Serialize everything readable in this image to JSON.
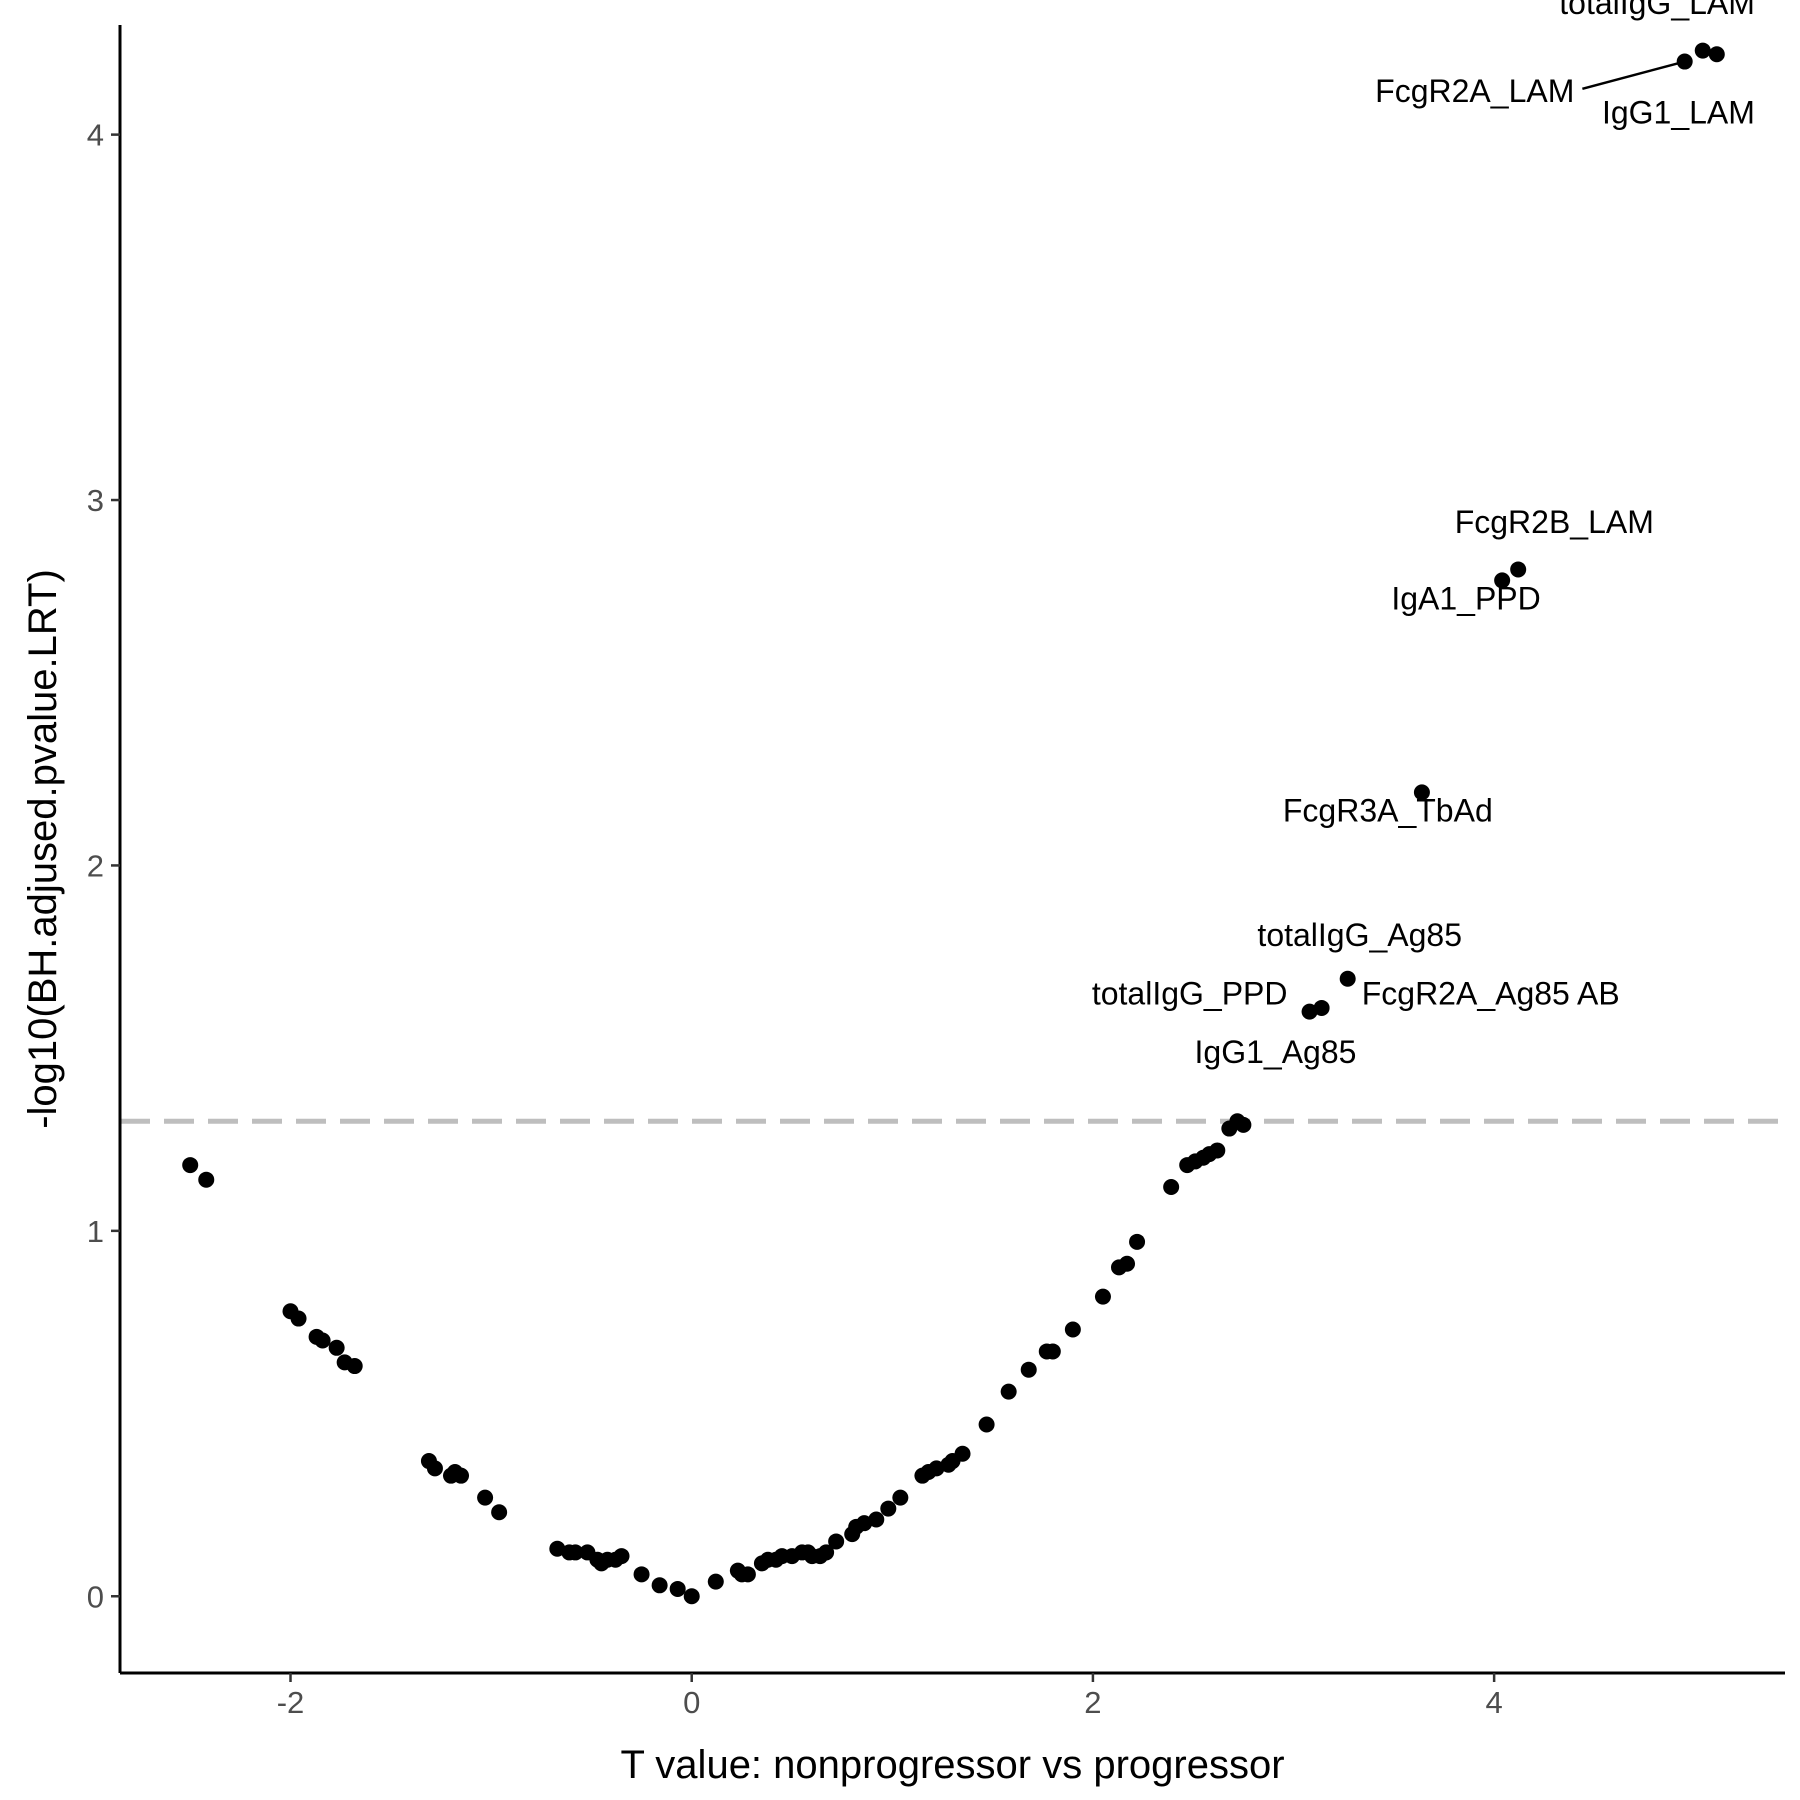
{
  "chart_data": {
    "type": "scatter",
    "xlabel": "T value: nonprogressor vs progressor",
    "ylabel": "-log10(BH.adjused.pvalue.LRT)",
    "xlim": [
      -2.85,
      5.45
    ],
    "ylim": [
      -0.21,
      4.3
    ],
    "xticks": [
      -2,
      0,
      2,
      4
    ],
    "xtick_labels": [
      "-2",
      "0",
      "2",
      "4"
    ],
    "yticks": [
      0,
      1,
      2,
      3,
      4
    ],
    "ytick_labels": [
      "0",
      "1",
      "2",
      "3",
      "4"
    ],
    "grid": false,
    "legend": "none",
    "threshold": {
      "y": 1.3,
      "style": "dashed",
      "color": "#bebebe"
    },
    "point_color": "#000000",
    "points": [
      {
        "x": -2.5,
        "y": 1.18
      },
      {
        "x": -2.42,
        "y": 1.14
      },
      {
        "x": -2.0,
        "y": 0.78
      },
      {
        "x": -1.96,
        "y": 0.76
      },
      {
        "x": -1.87,
        "y": 0.71
      },
      {
        "x": -1.84,
        "y": 0.7
      },
      {
        "x": -1.77,
        "y": 0.68
      },
      {
        "x": -1.73,
        "y": 0.64
      },
      {
        "x": -1.68,
        "y": 0.63
      },
      {
        "x": -1.31,
        "y": 0.37
      },
      {
        "x": -1.28,
        "y": 0.35
      },
      {
        "x": -1.2,
        "y": 0.33
      },
      {
        "x": -1.18,
        "y": 0.34
      },
      {
        "x": -1.15,
        "y": 0.33
      },
      {
        "x": -1.03,
        "y": 0.27
      },
      {
        "x": -0.96,
        "y": 0.23
      },
      {
        "x": -0.67,
        "y": 0.13
      },
      {
        "x": -0.61,
        "y": 0.12
      },
      {
        "x": -0.58,
        "y": 0.12
      },
      {
        "x": -0.52,
        "y": 0.12
      },
      {
        "x": -0.47,
        "y": 0.1
      },
      {
        "x": -0.45,
        "y": 0.09
      },
      {
        "x": -0.42,
        "y": 0.1
      },
      {
        "x": -0.38,
        "y": 0.1
      },
      {
        "x": -0.35,
        "y": 0.11
      },
      {
        "x": -0.25,
        "y": 0.06
      },
      {
        "x": -0.16,
        "y": 0.03
      },
      {
        "x": -0.07,
        "y": 0.02
      },
      {
        "x": 0.0,
        "y": 0.0
      },
      {
        "x": 0.12,
        "y": 0.04
      },
      {
        "x": 0.23,
        "y": 0.07
      },
      {
        "x": 0.25,
        "y": 0.06
      },
      {
        "x": 0.28,
        "y": 0.06
      },
      {
        "x": 0.35,
        "y": 0.09
      },
      {
        "x": 0.38,
        "y": 0.1
      },
      {
        "x": 0.42,
        "y": 0.1
      },
      {
        "x": 0.45,
        "y": 0.11
      },
      {
        "x": 0.5,
        "y": 0.11
      },
      {
        "x": 0.55,
        "y": 0.12
      },
      {
        "x": 0.58,
        "y": 0.12
      },
      {
        "x": 0.6,
        "y": 0.11
      },
      {
        "x": 0.64,
        "y": 0.11
      },
      {
        "x": 0.67,
        "y": 0.12
      },
      {
        "x": 0.72,
        "y": 0.15
      },
      {
        "x": 0.8,
        "y": 0.17
      },
      {
        "x": 0.82,
        "y": 0.19
      },
      {
        "x": 0.86,
        "y": 0.2
      },
      {
        "x": 0.92,
        "y": 0.21
      },
      {
        "x": 0.98,
        "y": 0.24
      },
      {
        "x": 1.04,
        "y": 0.27
      },
      {
        "x": 1.15,
        "y": 0.33
      },
      {
        "x": 1.18,
        "y": 0.34
      },
      {
        "x": 1.22,
        "y": 0.35
      },
      {
        "x": 1.28,
        "y": 0.36
      },
      {
        "x": 1.3,
        "y": 0.37
      },
      {
        "x": 1.35,
        "y": 0.39
      },
      {
        "x": 1.47,
        "y": 0.47
      },
      {
        "x": 1.58,
        "y": 0.56
      },
      {
        "x": 1.68,
        "y": 0.62
      },
      {
        "x": 1.77,
        "y": 0.67
      },
      {
        "x": 1.8,
        "y": 0.67
      },
      {
        "x": 1.9,
        "y": 0.73
      },
      {
        "x": 2.05,
        "y": 0.82
      },
      {
        "x": 2.13,
        "y": 0.9
      },
      {
        "x": 2.17,
        "y": 0.91
      },
      {
        "x": 2.22,
        "y": 0.97
      },
      {
        "x": 2.39,
        "y": 1.12
      },
      {
        "x": 2.47,
        "y": 1.18
      },
      {
        "x": 2.51,
        "y": 1.19
      },
      {
        "x": 2.55,
        "y": 1.2
      },
      {
        "x": 2.58,
        "y": 1.21
      },
      {
        "x": 2.62,
        "y": 1.22
      },
      {
        "x": 2.68,
        "y": 1.28
      },
      {
        "x": 2.72,
        "y": 1.3
      },
      {
        "x": 2.75,
        "y": 1.29
      },
      {
        "x": 3.08,
        "y": 1.6,
        "label": "totalIgG_PPD"
      },
      {
        "x": 3.14,
        "y": 1.61,
        "label": "IgG1_Ag85"
      },
      {
        "x": 3.27,
        "y": 1.69,
        "label": "totalIgG_Ag85"
      },
      {
        "x": 3.64,
        "y": 2.2,
        "label": "FcgR3A_TbAd"
      },
      {
        "x": 4.04,
        "y": 2.78,
        "label": "IgA1_PPD"
      },
      {
        "x": 4.12,
        "y": 2.81,
        "label": "FcgR2B_LAM"
      },
      {
        "x": 4.95,
        "y": 4.2,
        "label": "FcgR2A_LAM"
      },
      {
        "x": 5.04,
        "y": 4.23,
        "label": "totalIgG_LAM"
      },
      {
        "x": 5.11,
        "y": 4.22,
        "label": "IgG1_LAM"
      }
    ],
    "annotations": [
      {
        "text": "totalIgG_LAM",
        "x": 5.3,
        "y": 4.36,
        "anchor": "end"
      },
      {
        "text": "FcgR2A_LAM",
        "x": 4.4,
        "y": 4.12,
        "anchor": "end",
        "leader_to": [
          4.95,
          4.2
        ]
      },
      {
        "text": "IgG1_LAM",
        "x": 5.3,
        "y": 4.06,
        "anchor": "end"
      },
      {
        "text": "FcgR2B_LAM",
        "x": 4.3,
        "y": 2.94,
        "anchor": "middle"
      },
      {
        "text": "IgA1_PPD",
        "x": 3.86,
        "y": 2.73,
        "anchor": "middle"
      },
      {
        "text": "FcgR3A_TbAd",
        "x": 3.47,
        "y": 2.15,
        "anchor": "middle"
      },
      {
        "text": "totalIgG_Ag85",
        "x": 3.33,
        "y": 1.81,
        "anchor": "middle"
      },
      {
        "text": "totalIgG_PPD",
        "x": 2.97,
        "y": 1.65,
        "anchor": "end"
      },
      {
        "text": "FcgR2A_Ag85 AB",
        "x": 3.34,
        "y": 1.65,
        "anchor": "start"
      },
      {
        "text": "IgG1_Ag85",
        "x": 2.91,
        "y": 1.49,
        "anchor": "middle"
      }
    ]
  }
}
